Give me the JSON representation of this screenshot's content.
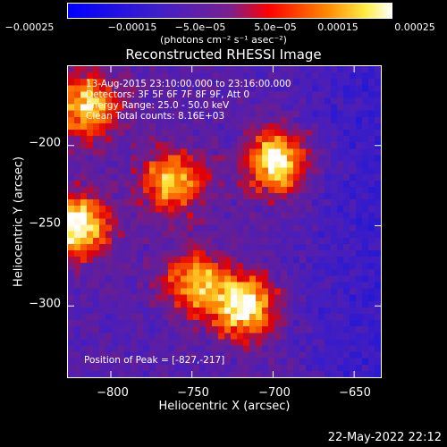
{
  "chart_data": {
    "type": "heatmap",
    "title": "Reconstructed RHESSI Image",
    "xlabel": "Heliocentric X (arcsec)",
    "ylabel": "Heliocentric Y (arcsec)",
    "xlim": [
      -827,
      -633
    ],
    "ylim": [
      -345,
      -150
    ],
    "x_ticks": [
      -800,
      -750,
      -700,
      -650
    ],
    "y_ticks": [
      -200,
      -250,
      -300
    ],
    "x_tick_labels": [
      "−800",
      "−750",
      "−700",
      "−650"
    ],
    "y_tick_labels": [
      "−200",
      "−250",
      "−300"
    ],
    "colorbar": {
      "range": [
        -0.00025,
        0.00025
      ],
      "tick_labels": [
        "−0.00025",
        "−0.00015",
        "−5.0e−05",
        "5.0e−05",
        "0.00015",
        "0.00025"
      ],
      "unit_label": "(photons cm⁻² s⁻¹ asec⁻²)",
      "colors": [
        "#0000ff",
        "#6633cc",
        "#ff0000",
        "#ff8800",
        "#ffffff"
      ]
    },
    "annotations": {
      "time_range": "13-Aug-2015 23:10:00.000 to 23:16:00.000",
      "detectors": "Detectors: 3F 5F 6F 7F 8F 9F, Att 0",
      "energy_range": "Energy Range: 25.0 - 50.0 keV",
      "clean": "Clean     Total counts: 8.16E+03",
      "peak": "Position of Peak = [-827,-217]"
    },
    "sources": [
      {
        "x": -697,
        "y": -210,
        "intensity": 1.0
      },
      {
        "x": -718,
        "y": -301,
        "intensity": 0.95
      },
      {
        "x": -762,
        "y": -222,
        "intensity": 0.8
      },
      {
        "x": -748,
        "y": -285,
        "intensity": 0.75
      },
      {
        "x": -822,
        "y": -250,
        "intensity": 1.0
      },
      {
        "x": -815,
        "y": -175,
        "intensity": 0.85
      }
    ]
  },
  "footer": "22-May-2022 22:12"
}
